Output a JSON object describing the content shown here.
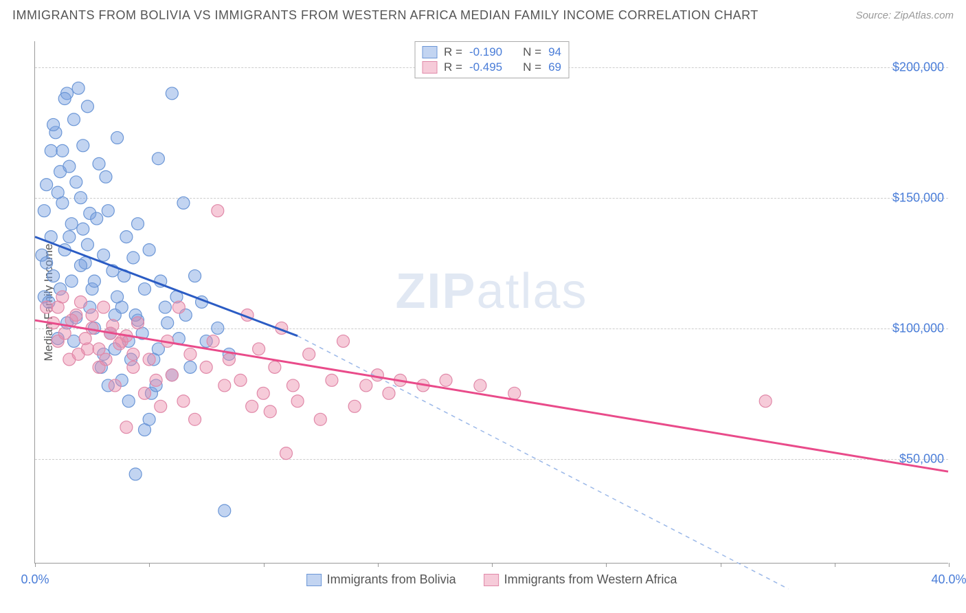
{
  "title": "IMMIGRANTS FROM BOLIVIA VS IMMIGRANTS FROM WESTERN AFRICA MEDIAN FAMILY INCOME CORRELATION CHART",
  "source_label": "Source: ZipAtlas.com",
  "ylabel": "Median Family Income",
  "watermark_a": "ZIP",
  "watermark_b": "atlas",
  "chart": {
    "type": "scatter",
    "xlim": [
      0,
      40
    ],
    "ylim": [
      10000,
      210000
    ],
    "x_tick_positions": [
      0,
      5,
      10,
      15,
      20,
      25,
      30,
      35,
      40
    ],
    "x_tick_labels_shown": {
      "0": "0.0%",
      "40": "40.0%"
    },
    "y_gridlines": [
      50000,
      100000,
      150000,
      200000
    ],
    "y_tick_labels": {
      "50000": "$50,000",
      "100000": "$100,000",
      "150000": "$150,000",
      "200000": "$200,000"
    },
    "background_color": "#ffffff",
    "grid_color": "#cccccc",
    "grid_dash": "4,4",
    "axis_color": "#999999",
    "series": [
      {
        "name": "Immigrants from Bolivia",
        "color_fill": "rgba(120,160,225,0.45)",
        "color_stroke": "#6b96d6",
        "marker_radius": 9,
        "R": "-0.190",
        "N": "94",
        "regression": {
          "x1": 0,
          "y1": 135000,
          "x2": 11.5,
          "y2": 97000,
          "extend_x2": 33,
          "extend_y2": 0,
          "solid_color": "#2b5cc4",
          "dash_color": "#9bb8e8",
          "width": 3
        },
        "points": [
          [
            0.3,
            128000
          ],
          [
            0.4,
            112000
          ],
          [
            0.5,
            155000
          ],
          [
            0.6,
            110000
          ],
          [
            0.7,
            168000
          ],
          [
            0.8,
            120000
          ],
          [
            0.9,
            175000
          ],
          [
            1.0,
            96000
          ],
          [
            1.1,
            160000
          ],
          [
            1.2,
            148000
          ],
          [
            1.3,
            130000
          ],
          [
            1.4,
            190000
          ],
          [
            1.5,
            135000
          ],
          [
            1.6,
            118000
          ],
          [
            1.7,
            180000
          ],
          [
            1.8,
            104000
          ],
          [
            1.9,
            192000
          ],
          [
            2.0,
            150000
          ],
          [
            2.1,
            138000
          ],
          [
            2.2,
            125000
          ],
          [
            2.3,
            185000
          ],
          [
            2.4,
            144000
          ],
          [
            2.5,
            115000
          ],
          [
            2.6,
            100000
          ],
          [
            2.8,
            163000
          ],
          [
            3.0,
            90000
          ],
          [
            3.1,
            158000
          ],
          [
            3.2,
            145000
          ],
          [
            3.4,
            122000
          ],
          [
            3.5,
            105000
          ],
          [
            3.6,
            173000
          ],
          [
            3.8,
            108000
          ],
          [
            4.0,
            135000
          ],
          [
            4.1,
            95000
          ],
          [
            4.3,
            127000
          ],
          [
            4.4,
            44000
          ],
          [
            4.5,
            140000
          ],
          [
            4.8,
            61000
          ],
          [
            5.0,
            130000
          ],
          [
            5.2,
            88000
          ],
          [
            5.4,
            165000
          ],
          [
            5.5,
            118000
          ],
          [
            5.8,
            102000
          ],
          [
            6.0,
            190000
          ],
          [
            6.2,
            112000
          ],
          [
            6.5,
            148000
          ],
          [
            6.8,
            85000
          ],
          [
            7.0,
            120000
          ],
          [
            7.3,
            110000
          ],
          [
            7.5,
            95000
          ],
          [
            8.0,
            100000
          ],
          [
            8.3,
            30000
          ],
          [
            8.5,
            90000
          ],
          [
            1.0,
            152000
          ],
          [
            1.3,
            188000
          ],
          [
            1.6,
            140000
          ],
          [
            0.5,
            125000
          ],
          [
            0.8,
            178000
          ],
          [
            1.2,
            168000
          ],
          [
            1.5,
            162000
          ],
          [
            1.8,
            156000
          ],
          [
            2.1,
            170000
          ],
          [
            2.4,
            108000
          ],
          [
            2.7,
            142000
          ],
          [
            3.0,
            128000
          ],
          [
            3.3,
            98000
          ],
          [
            3.6,
            112000
          ],
          [
            3.9,
            120000
          ],
          [
            4.2,
            88000
          ],
          [
            4.5,
            103000
          ],
          [
            4.8,
            115000
          ],
          [
            5.1,
            75000
          ],
          [
            5.4,
            92000
          ],
          [
            5.7,
            108000
          ],
          [
            6.0,
            82000
          ],
          [
            6.3,
            96000
          ],
          [
            6.6,
            105000
          ],
          [
            0.4,
            145000
          ],
          [
            0.7,
            135000
          ],
          [
            1.1,
            115000
          ],
          [
            1.4,
            102000
          ],
          [
            1.7,
            95000
          ],
          [
            2.0,
            124000
          ],
          [
            2.3,
            132000
          ],
          [
            2.6,
            118000
          ],
          [
            2.9,
            85000
          ],
          [
            3.2,
            78000
          ],
          [
            3.5,
            92000
          ],
          [
            3.8,
            80000
          ],
          [
            4.1,
            72000
          ],
          [
            4.4,
            105000
          ],
          [
            4.7,
            98000
          ],
          [
            5.0,
            65000
          ],
          [
            5.3,
            78000
          ]
        ]
      },
      {
        "name": "Immigrants from Western Africa",
        "color_fill": "rgba(235,140,170,0.45)",
        "color_stroke": "#e088a8",
        "marker_radius": 9,
        "R": "-0.495",
        "N": "69",
        "regression": {
          "x1": 0,
          "y1": 103000,
          "x2": 40,
          "y2": 45000,
          "solid_color": "#e94b8a",
          "width": 3
        },
        "points": [
          [
            0.5,
            108000
          ],
          [
            0.8,
            102000
          ],
          [
            1.0,
            95000
          ],
          [
            1.2,
            112000
          ],
          [
            1.5,
            88000
          ],
          [
            1.8,
            105000
          ],
          [
            2.0,
            110000
          ],
          [
            2.3,
            92000
          ],
          [
            2.5,
            100000
          ],
          [
            2.8,
            85000
          ],
          [
            3.0,
            108000
          ],
          [
            3.3,
            98000
          ],
          [
            3.5,
            78000
          ],
          [
            3.8,
            95000
          ],
          [
            4.0,
            62000
          ],
          [
            4.3,
            90000
          ],
          [
            4.5,
            102000
          ],
          [
            4.8,
            75000
          ],
          [
            5.0,
            88000
          ],
          [
            5.3,
            80000
          ],
          [
            5.5,
            70000
          ],
          [
            5.8,
            95000
          ],
          [
            6.0,
            82000
          ],
          [
            6.3,
            108000
          ],
          [
            6.5,
            72000
          ],
          [
            6.8,
            90000
          ],
          [
            7.0,
            65000
          ],
          [
            7.5,
            85000
          ],
          [
            7.8,
            95000
          ],
          [
            8.0,
            145000
          ],
          [
            8.3,
            78000
          ],
          [
            8.5,
            88000
          ],
          [
            9.0,
            80000
          ],
          [
            9.3,
            105000
          ],
          [
            9.5,
            70000
          ],
          [
            9.8,
            92000
          ],
          [
            10.0,
            75000
          ],
          [
            10.3,
            68000
          ],
          [
            10.5,
            85000
          ],
          [
            10.8,
            100000
          ],
          [
            11.0,
            52000
          ],
          [
            11.3,
            78000
          ],
          [
            11.5,
            72000
          ],
          [
            12.0,
            90000
          ],
          [
            12.5,
            65000
          ],
          [
            13.0,
            80000
          ],
          [
            13.5,
            95000
          ],
          [
            14.0,
            70000
          ],
          [
            14.5,
            78000
          ],
          [
            15.0,
            82000
          ],
          [
            15.5,
            75000
          ],
          [
            16.0,
            80000
          ],
          [
            17.0,
            78000
          ],
          [
            18.0,
            80000
          ],
          [
            19.5,
            78000
          ],
          [
            21.0,
            75000
          ],
          [
            32.0,
            72000
          ],
          [
            1.0,
            108000
          ],
          [
            1.3,
            98000
          ],
          [
            1.6,
            103000
          ],
          [
            1.9,
            90000
          ],
          [
            2.2,
            96000
          ],
          [
            2.5,
            105000
          ],
          [
            2.8,
            92000
          ],
          [
            3.1,
            88000
          ],
          [
            3.4,
            101000
          ],
          [
            3.7,
            94000
          ],
          [
            4.0,
            97000
          ],
          [
            4.3,
            85000
          ]
        ]
      }
    ],
    "legend_corr_labels": {
      "R": "R  =",
      "N": "N  ="
    },
    "bottom_legend_swatches": [
      {
        "fill": "rgba(120,160,225,0.45)",
        "stroke": "#6b96d6"
      },
      {
        "fill": "rgba(235,140,170,0.45)",
        "stroke": "#e088a8"
      }
    ]
  }
}
